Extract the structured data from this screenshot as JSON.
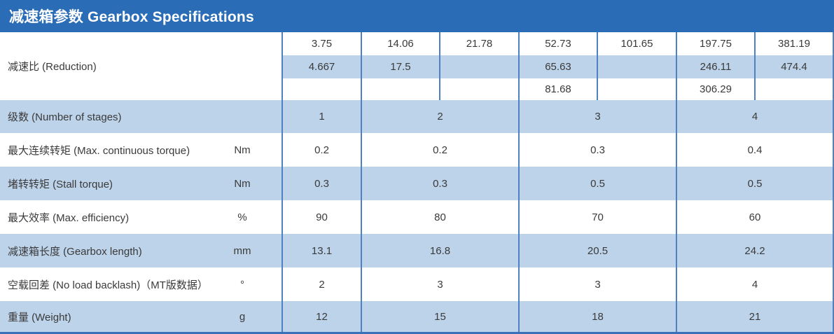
{
  "title": "减速箱参数 Gearbox Specifications",
  "colors": {
    "header_bg": "#2a6db6",
    "band": "#bdd3ea",
    "border": "#4f81c0",
    "bottom": "#3a70ba",
    "text": "#3a3a3a"
  },
  "reduction": {
    "label": "减速比 (Reduction)",
    "unit": "",
    "rows": [
      [
        "3.75",
        "14.06",
        "21.78",
        "52.73",
        "101.65",
        "197.75",
        "381.19"
      ],
      [
        "4.667",
        "17.5",
        "",
        "65.63",
        "",
        "246.11",
        "474.4"
      ],
      [
        "",
        "",
        "",
        "81.68",
        "",
        "306.29",
        ""
      ]
    ]
  },
  "specs": [
    {
      "label": "级数 (Number of stages)",
      "unit": "",
      "values": [
        "1",
        "2",
        "3",
        "4"
      ]
    },
    {
      "label": "最大连续转矩 (Max. continuous torque)",
      "unit": "Nm",
      "values": [
        "0.2",
        "0.2",
        "0.3",
        "0.4"
      ]
    },
    {
      "label": "堵转转矩 (Stall torque)",
      "unit": "Nm",
      "values": [
        "0.3",
        "0.3",
        "0.5",
        "0.5"
      ]
    },
    {
      "label": "最大效率 (Max. efficiency)",
      "unit": "%",
      "values": [
        "90",
        "80",
        "70",
        "60"
      ]
    },
    {
      "label": "减速箱长度 (Gearbox length)",
      "unit": "mm",
      "values": [
        "13.1",
        "16.8",
        "20.5",
        "24.2"
      ]
    },
    {
      "label": "空载回差 (No load backlash)（MT版数据）",
      "unit": "°",
      "values": [
        "2",
        "3",
        "3",
        "4"
      ]
    },
    {
      "label": "重量 (Weight)",
      "unit": "g",
      "values": [
        "12",
        "15",
        "18",
        "21"
      ]
    }
  ]
}
